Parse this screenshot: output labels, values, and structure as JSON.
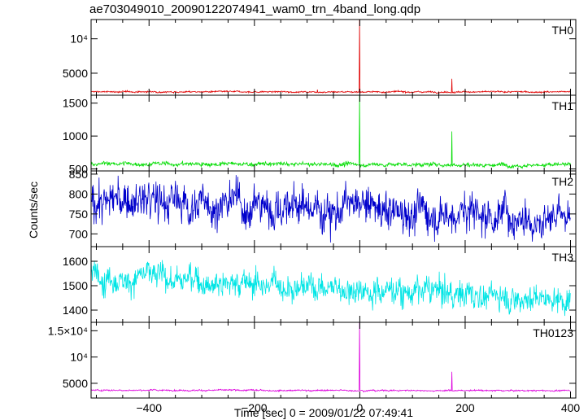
{
  "chart_data": {
    "type": "line",
    "title": "ae703049010_20090122074941_wam0_trn_4band_long.qdp",
    "xlabel": "Time [sec] 0 = 2009/01/22 07:49:41",
    "ylabel": "Counts/sec",
    "xlim": [
      -510,
      410
    ],
    "x_ticks": [
      -400,
      -200,
      0,
      200,
      400
    ],
    "grid": false,
    "panels": [
      {
        "name": "TH0",
        "color": "#e00000",
        "ylim": [
          1800,
          12800
        ],
        "y_ticks": [
          {
            "v": 5000,
            "label": "5000"
          },
          {
            "v": 10000,
            "label": "10⁴"
          }
        ],
        "baseline": [
          {
            "x": -510,
            "y": 2300
          },
          {
            "x": 400,
            "y": 2280
          }
        ],
        "noise": 90,
        "spikes": [
          {
            "x": 0,
            "y": 12800
          },
          {
            "x": 175,
            "y": 4200
          },
          {
            "x": -80,
            "y": 2600
          }
        ]
      },
      {
        "name": "TH1",
        "color": "#00dd00",
        "ylim": [
          470,
          1620
        ],
        "y_ticks": [
          {
            "v": 500,
            "label": "500"
          },
          {
            "v": 1000,
            "label": "1000"
          },
          {
            "v": 1500,
            "label": "1500"
          }
        ],
        "baseline": [
          {
            "x": -510,
            "y": 580
          },
          {
            "x": 400,
            "y": 560
          }
        ],
        "noise": 25,
        "spikes": [
          {
            "x": 0,
            "y": 1620
          },
          {
            "x": 175,
            "y": 1070
          }
        ]
      },
      {
        "name": "TH2",
        "color": "#0000cc",
        "ylim": [
          668,
          858
        ],
        "y_ticks": [
          {
            "v": 700,
            "label": "700"
          },
          {
            "v": 750,
            "label": "750"
          },
          {
            "v": 800,
            "label": "800"
          },
          {
            "v": 850,
            "label": "850"
          }
        ],
        "baseline": [
          {
            "x": -510,
            "y": 785
          },
          {
            "x": 400,
            "y": 745
          }
        ],
        "noise": 40,
        "spikes": []
      },
      {
        "name": "TH3",
        "color": "#00e5e5",
        "ylim": [
          1350,
          1660
        ],
        "y_ticks": [
          {
            "v": 1400,
            "label": "1400"
          },
          {
            "v": 1500,
            "label": "1500"
          },
          {
            "v": 1600,
            "label": "1600"
          }
        ],
        "baseline": [
          {
            "x": -510,
            "y": 1545
          },
          {
            "x": 400,
            "y": 1445
          }
        ],
        "noise": 45,
        "spikes": []
      },
      {
        "name": "TH0123",
        "color": "#dd00dd",
        "ylim": [
          2200,
          16600
        ],
        "y_ticks": [
          {
            "v": 5000,
            "label": "5000"
          },
          {
            "v": 10000,
            "label": "10⁴"
          },
          {
            "v": 15000,
            "label": "1.5×10⁴"
          }
        ],
        "baseline": [
          {
            "x": -510,
            "y": 3700
          },
          {
            "x": 400,
            "y": 3600
          }
        ],
        "noise": 110,
        "spikes": [
          {
            "x": 0,
            "y": 16600
          },
          {
            "x": 175,
            "y": 7200
          }
        ]
      }
    ]
  }
}
